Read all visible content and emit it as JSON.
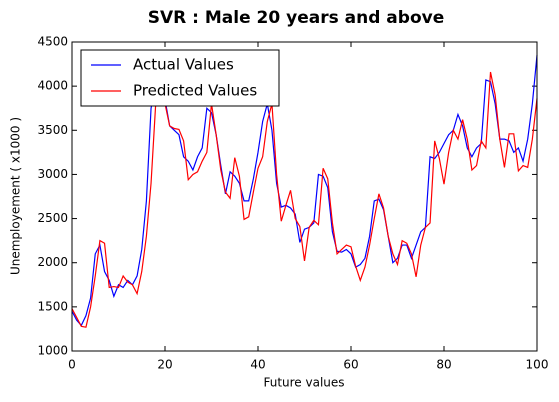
{
  "chart_data": {
    "type": "line",
    "title": "SVR : Male 20 years and above",
    "xlabel": "Future values",
    "ylabel": "Unemployement ( x1000 )",
    "x": [
      0,
      1,
      2,
      3,
      4,
      5,
      6,
      7,
      8,
      9,
      10,
      11,
      12,
      13,
      14,
      15,
      16,
      17,
      18,
      19,
      20,
      21,
      22,
      23,
      24,
      25,
      26,
      27,
      28,
      29,
      30,
      31,
      32,
      33,
      34,
      35,
      36,
      37,
      38,
      39,
      40,
      41,
      42,
      43,
      44,
      45,
      46,
      47,
      48,
      49,
      50,
      51,
      52,
      53,
      54,
      55,
      56,
      57,
      58,
      59,
      60,
      61,
      62,
      63,
      64,
      65,
      66,
      67,
      68,
      69,
      70,
      71,
      72,
      73,
      74,
      75,
      76,
      77,
      78,
      79,
      80,
      81,
      82,
      83,
      84,
      85,
      86,
      87,
      88,
      89,
      90,
      91,
      92,
      93,
      94,
      95,
      96,
      97,
      98,
      99,
      100
    ],
    "series": [
      {
        "name": "Actual Values",
        "color": "#0000ff",
        "values": [
          1450,
          1350,
          1290,
          1400,
          1600,
          2100,
          2200,
          1900,
          1800,
          1620,
          1750,
          1720,
          1800,
          1750,
          1850,
          2150,
          2700,
          3750,
          4000,
          3900,
          3850,
          3550,
          3500,
          3450,
          3200,
          3150,
          3050,
          3200,
          3300,
          3750,
          3700,
          3450,
          3100,
          2780,
          3030,
          2980,
          2900,
          2700,
          2700,
          2950,
          3250,
          3600,
          3800,
          3500,
          2900,
          2630,
          2650,
          2620,
          2550,
          2230,
          2380,
          2400,
          2450,
          3000,
          2980,
          2850,
          2350,
          2130,
          2120,
          2150,
          2100,
          1950,
          1980,
          2050,
          2300,
          2700,
          2720,
          2600,
          2300,
          2000,
          2050,
          2200,
          2200,
          2050,
          2200,
          2350,
          2400,
          3200,
          3180,
          3250,
          3350,
          3450,
          3500,
          3680,
          3550,
          3300,
          3200,
          3300,
          3350,
          4070,
          4050,
          3800,
          3400,
          3400,
          3380,
          3250,
          3300,
          3150,
          3400,
          3800,
          4350
        ]
      },
      {
        "name": "Predicted Values",
        "color": "#ff0000",
        "values": [
          1480,
          1380,
          1280,
          1270,
          1500,
          1850,
          2250,
          2220,
          1720,
          1730,
          1720,
          1850,
          1780,
          1750,
          1650,
          1900,
          2300,
          2900,
          3800,
          3900,
          3800,
          3550,
          3520,
          3510,
          3380,
          2940,
          3000,
          3030,
          3150,
          3250,
          3800,
          3450,
          3050,
          2800,
          2730,
          3190,
          2980,
          2490,
          2520,
          2800,
          3070,
          3200,
          3600,
          3800,
          3000,
          2470,
          2650,
          2820,
          2500,
          2410,
          2020,
          2400,
          2480,
          2430,
          3070,
          2950,
          2450,
          2100,
          2150,
          2200,
          2180,
          1960,
          1800,
          1950,
          2200,
          2500,
          2780,
          2620,
          2300,
          2100,
          1980,
          2250,
          2220,
          2100,
          1840,
          2200,
          2400,
          2450,
          3380,
          3180,
          2890,
          3250,
          3500,
          3400,
          3620,
          3400,
          3050,
          3100,
          3380,
          3300,
          4160,
          3900,
          3400,
          3080,
          3460,
          3460,
          3040,
          3100,
          3080,
          3400,
          3860
        ]
      }
    ],
    "xlim": [
      0,
      100
    ],
    "xticks": [
      0,
      20,
      40,
      60,
      80,
      100
    ],
    "ylim": [
      1000,
      4500
    ],
    "yticks": [
      1000,
      1500,
      2000,
      2500,
      3000,
      3500,
      4000,
      4500
    ],
    "legend": "upper left"
  }
}
